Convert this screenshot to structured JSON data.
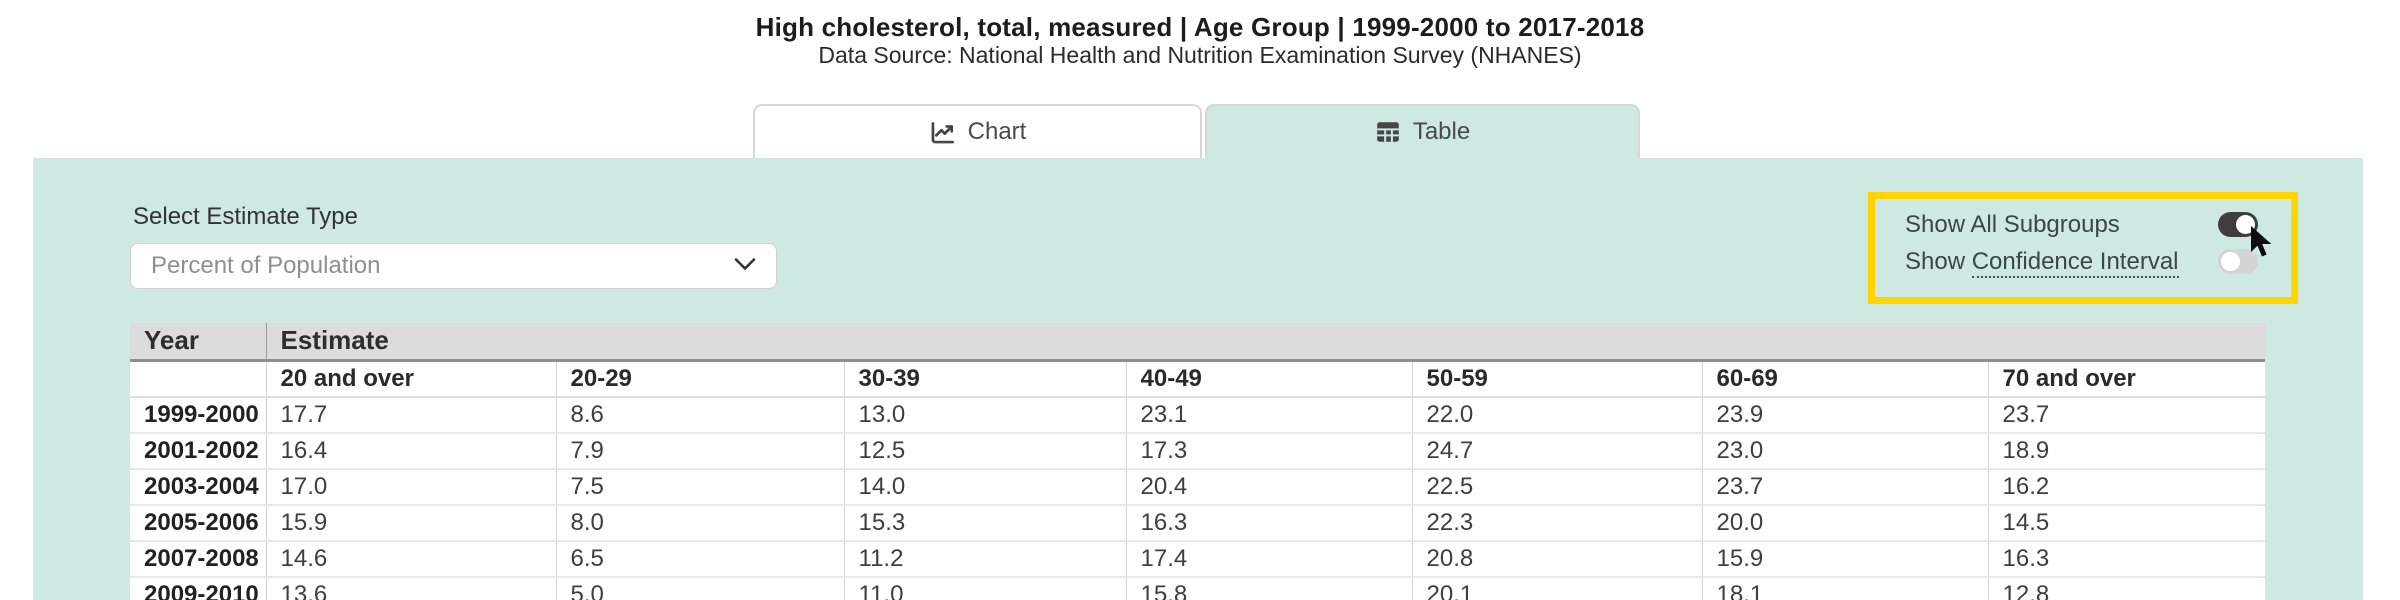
{
  "page": {
    "title": "High cholesterol, total, measured | Age Group | 1999-2000 to 2017-2018",
    "subtitle": "Data Source: National Health and Nutrition Examination Survey (NHANES)"
  },
  "tabs": [
    {
      "label": "Chart",
      "icon": "chart-line-icon",
      "active": false
    },
    {
      "label": "Table",
      "icon": "table-icon",
      "active": true
    }
  ],
  "filters": {
    "estimate_type": {
      "label": "Select Estimate Type",
      "value": "Percent of Population",
      "icon": "chevron-down-icon"
    }
  },
  "toggles": {
    "show_all_subgroups": {
      "label": "Show All Subgroups",
      "state": "on"
    },
    "show_confidence_interval": {
      "label_prefix": "Show ",
      "label_term": "Confidence Interval",
      "state": "off"
    }
  },
  "annotations": {
    "highlight_box_color": "#ffd400",
    "cursor_icon": "arrow-cursor-icon"
  },
  "table": {
    "year_header": "Year",
    "group_header": "Estimate",
    "age_group_headers": [
      "20 and over",
      "20-29",
      "30-39",
      "40-49",
      "50-59",
      "60-69",
      "70 and over"
    ],
    "rows": [
      {
        "year": "1999-2000",
        "values": [
          "17.7",
          "8.6",
          "13.0",
          "23.1",
          "22.0",
          "23.9",
          "23.7"
        ]
      },
      {
        "year": "2001-2002",
        "values": [
          "16.4",
          "7.9",
          "12.5",
          "17.3",
          "24.7",
          "23.0",
          "18.9"
        ]
      },
      {
        "year": "2003-2004",
        "values": [
          "17.0",
          "7.5",
          "14.0",
          "20.4",
          "22.5",
          "23.7",
          "16.2"
        ]
      },
      {
        "year": "2005-2006",
        "values": [
          "15.9",
          "8.0",
          "15.3",
          "16.3",
          "22.3",
          "20.0",
          "14.5"
        ]
      },
      {
        "year": "2007-2008",
        "values": [
          "14.6",
          "6.5",
          "11.2",
          "17.4",
          "20.8",
          "15.9",
          "16.3"
        ]
      },
      {
        "year": "2009-2010",
        "values": [
          "13.6",
          "5.0",
          "11.0",
          "15.8",
          "20.1",
          "18.1",
          "12.8"
        ]
      }
    ]
  },
  "colors": {
    "panel_teal": "#cde9e2",
    "highlight_yellow": "#ffd400",
    "header_gray": "#dcdcdc",
    "header_rule_gray": "#8f8f8f",
    "toggle_on": "#3e3e3e",
    "toggle_off": "#d4d4d4"
  }
}
